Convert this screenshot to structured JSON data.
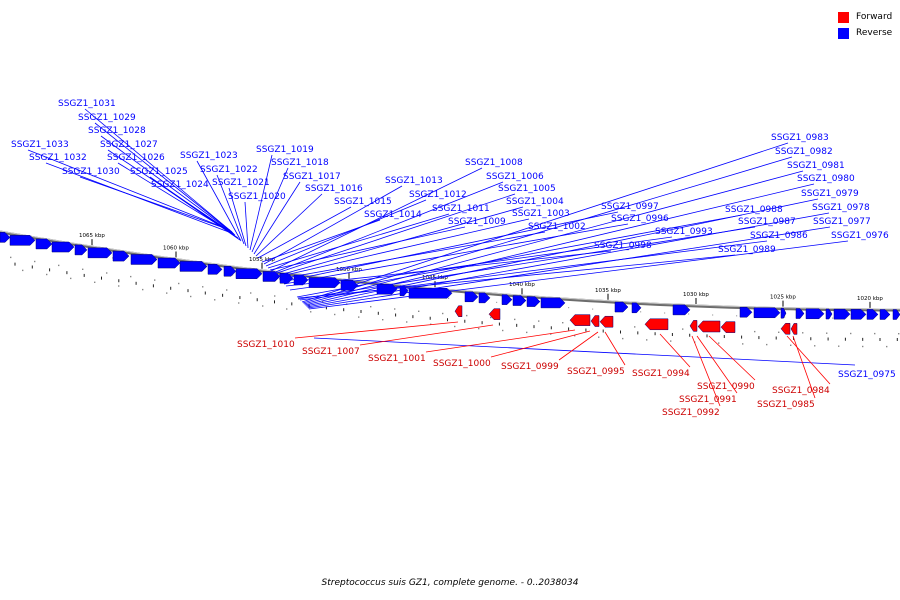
{
  "legend": [
    {
      "label": "Forward",
      "color": "#ff0000"
    },
    {
      "label": "Reverse",
      "color": "#0000ff"
    }
  ],
  "caption": "Streptococcus suis GZ1, complete genome. - 0..2038034",
  "colors": {
    "forward": "#ff0000",
    "reverse": "#0000ff",
    "backbone": "#888888"
  },
  "ticks": [
    "1065 kbp",
    "1060 kbp",
    "1055 kbp",
    "1050 kbp",
    "1045 kbp",
    "1040 kbp",
    "1035 kbp",
    "1030 kbp",
    "1025 kbp",
    "1020 kbp"
  ],
  "genes_reverse": [
    "SSGZ1_1031",
    "SSGZ1_1029",
    "SSGZ1_1028",
    "SSGZ1_1027",
    "SSGZ1_1033",
    "SSGZ1_1026",
    "SSGZ1_1032",
    "SSGZ1_1030",
    "SSGZ1_1025",
    "SSGZ1_1024",
    "SSGZ1_1023",
    "SSGZ1_1022",
    "SSGZ1_1021",
    "SSGZ1_1020",
    "SSGZ1_1019",
    "SSGZ1_1018",
    "SSGZ1_1017",
    "SSGZ1_1016",
    "SSGZ1_1015",
    "SSGZ1_1014",
    "SSGZ1_1013",
    "SSGZ1_1012",
    "SSGZ1_1011",
    "SSGZ1_1009",
    "SSGZ1_1008",
    "SSGZ1_1006",
    "SSGZ1_1005",
    "SSGZ1_1004",
    "SSGZ1_1003",
    "SSGZ1_1002",
    "SSGZ1_0997",
    "SSGZ1_0996",
    "SSGZ1_0998",
    "SSGZ1_0993",
    "SSGZ1_0988",
    "SSGZ1_0987",
    "SSGZ1_0986",
    "SSGZ1_0989",
    "SSGZ1_0983",
    "SSGZ1_0982",
    "SSGZ1_0981",
    "SSGZ1_0980",
    "SSGZ1_0979",
    "SSGZ1_0978",
    "SSGZ1_0977",
    "SSGZ1_0976",
    "SSGZ1_0975"
  ],
  "genes_forward": [
    "SSGZ1_1010",
    "SSGZ1_1007",
    "SSGZ1_1001",
    "SSGZ1_1000",
    "SSGZ1_0999",
    "SSGZ1_0995",
    "SSGZ1_0994",
    "SSGZ1_0990",
    "SSGZ1_0991",
    "SSGZ1_0992",
    "SSGZ1_0984",
    "SSGZ1_0985"
  ]
}
